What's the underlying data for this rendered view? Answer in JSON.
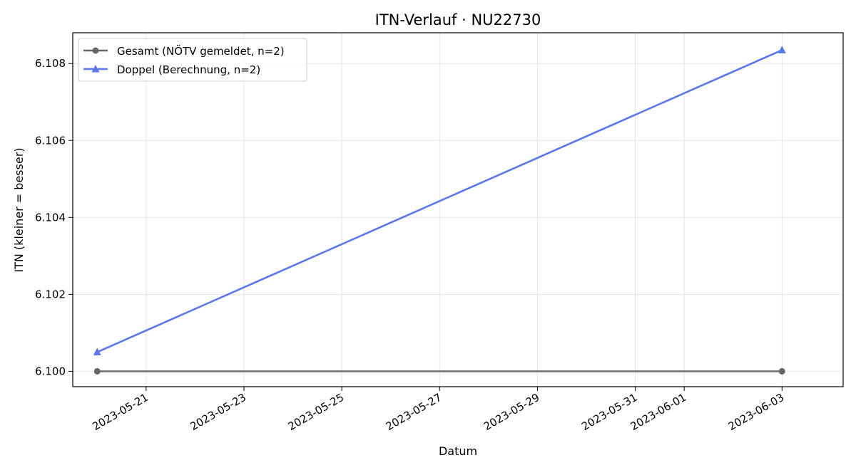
{
  "chart_data": {
    "type": "line",
    "title": "ITN-Verlauf · NU22730",
    "xlabel": "Datum",
    "ylabel": "ITN  (kleiner = besser)",
    "x_type": "date",
    "xlim": [
      "2023-05-19T12:00",
      "2023-06-04T06:00"
    ],
    "ylim": [
      6.0996,
      6.1088
    ],
    "x_ticks": [
      "2023-05-21",
      "2023-05-23",
      "2023-05-25",
      "2023-05-27",
      "2023-05-29",
      "2023-05-31",
      "2023-06-01",
      "2023-06-03"
    ],
    "y_ticks": [
      6.1,
      6.102,
      6.104,
      6.106,
      6.108
    ],
    "y_tick_labels": [
      "6.100",
      "6.102",
      "6.104",
      "6.106",
      "6.108"
    ],
    "grid": true,
    "legend_position": "top-left",
    "series": [
      {
        "name": "Gesamt (NÖTV gemeldet, n=2)",
        "color": "#666666",
        "marker": "circle",
        "points": [
          {
            "x": "2023-05-20",
            "y": 6.1
          },
          {
            "x": "2023-06-03",
            "y": 6.1
          }
        ]
      },
      {
        "name": "Doppel (Berechnung, n=2)",
        "color": "#5a78ec",
        "marker": "triangle",
        "points": [
          {
            "x": "2023-05-20",
            "y": 6.1005
          },
          {
            "x": "2023-06-03",
            "y": 6.10835
          }
        ]
      }
    ]
  }
}
